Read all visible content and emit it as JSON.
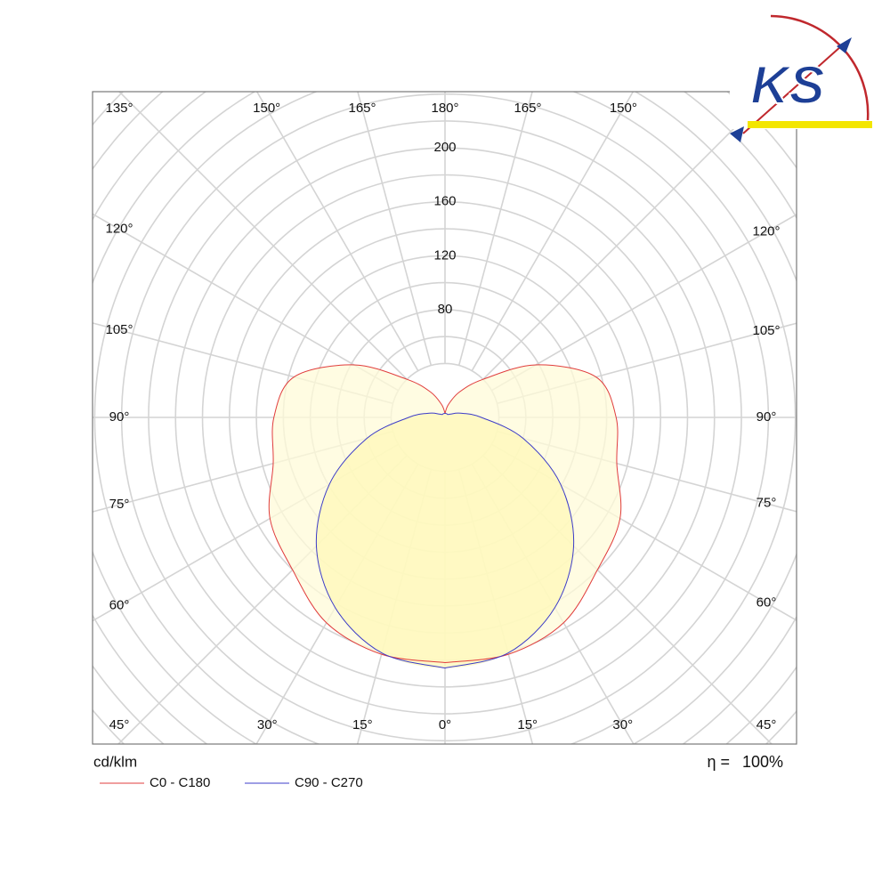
{
  "chart_data": {
    "type": "polar",
    "unit_label": "cd/klm",
    "efficiency_symbol": "η =",
    "efficiency": "100%",
    "rlim": [
      0,
      360
    ],
    "rgrid": [
      40,
      60,
      80,
      100,
      120,
      140,
      160,
      180,
      200,
      220,
      240,
      260,
      280,
      300,
      320,
      340,
      360
    ],
    "rticks": [
      80,
      120,
      160,
      200
    ],
    "angle_ticks": [
      {
        "value": -45,
        "label": "45°"
      },
      {
        "value": -30,
        "label": "30°"
      },
      {
        "value": -15,
        "label": "15°"
      },
      {
        "value": 0,
        "label": "0°"
      },
      {
        "value": 15,
        "label": "15°"
      },
      {
        "value": 30,
        "label": "30°"
      },
      {
        "value": 45,
        "label": "45°"
      },
      {
        "value": 60,
        "label": "60°"
      },
      {
        "value": 75,
        "label": "75°"
      },
      {
        "value": 90,
        "label": "90°"
      },
      {
        "value": 105,
        "label": "105°"
      },
      {
        "value": 120,
        "label": "120°"
      },
      {
        "value": 135,
        "label": "135°"
      },
      {
        "value": 150,
        "label": "150°"
      },
      {
        "value": 165,
        "label": "165°"
      },
      {
        "value": 180,
        "label": "180°"
      },
      {
        "value": -165,
        "label": "165°"
      },
      {
        "value": -150,
        "label": "150°"
      },
      {
        "value": -135,
        "label": "135°"
      },
      {
        "value": -120,
        "label": "120°"
      },
      {
        "value": -105,
        "label": "105°"
      },
      {
        "value": -90,
        "label": "90°"
      },
      {
        "value": -75,
        "label": "75°"
      },
      {
        "value": -60,
        "label": "60°"
      }
    ],
    "angles": [
      0,
      15,
      30,
      45,
      60,
      75,
      90,
      105,
      120,
      135,
      150,
      165,
      180
    ],
    "series": [
      {
        "name": "C0 - C180",
        "color": "#e03c3c",
        "fill": "#fffbd8",
        "values": [
          182,
          182,
          176,
          160,
          150,
          132,
          127,
          116,
          78,
          40,
          22,
          10,
          3
        ]
      },
      {
        "name": "C90 - C270",
        "color": "#3c3cc8",
        "fill": "#fff8b8",
        "values": [
          186,
          181,
          163,
          135,
          99,
          60,
          27,
          12,
          5,
          3,
          3,
          3,
          3
        ]
      }
    ],
    "logo": "KS"
  }
}
